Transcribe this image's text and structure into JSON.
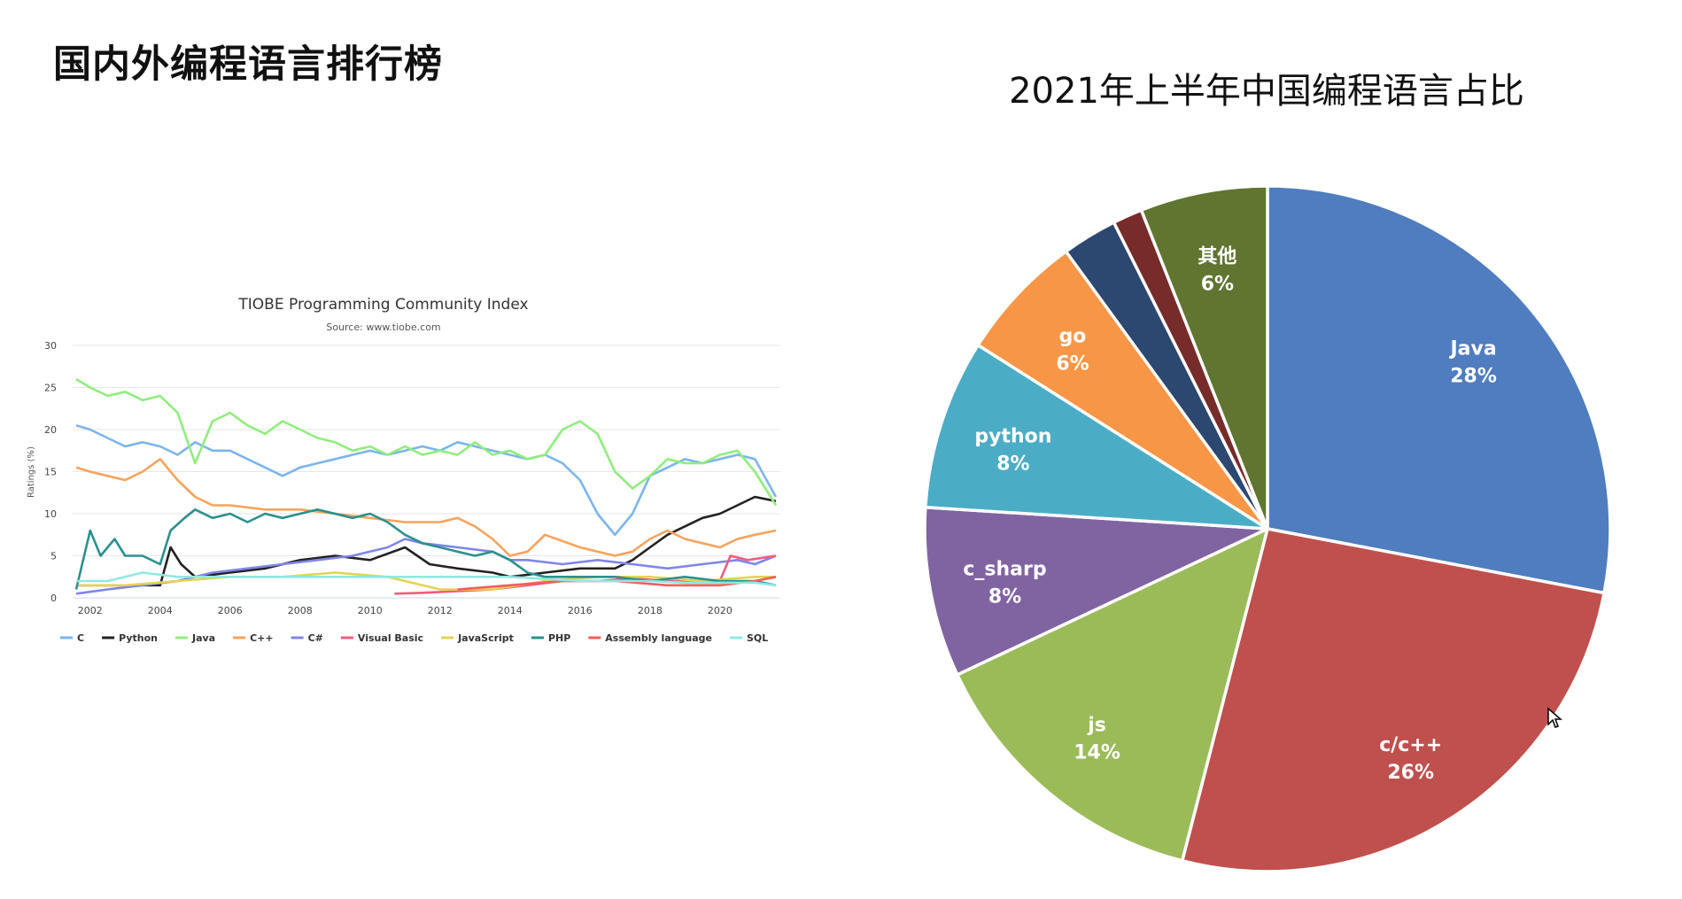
{
  "slide": {
    "title": "国内外编程语言排行榜"
  },
  "chart_data": [
    {
      "type": "line",
      "title": "TIOBE Programming Community Index",
      "subtitle": "Source: www.tiobe.com",
      "xlabel": "",
      "ylabel": "Ratings (%)",
      "xlim": [
        2001.5,
        2021.7
      ],
      "ylim": [
        0,
        30
      ],
      "yticks": [
        0,
        5,
        10,
        15,
        20,
        25,
        30
      ],
      "xticks": [
        2002,
        2004,
        2006,
        2008,
        2010,
        2012,
        2014,
        2016,
        2018,
        2020
      ],
      "grid": true,
      "legend_position": "bottom",
      "series": [
        {
          "name": "C",
          "color": "#7cb5ec",
          "x": [
            2001.6,
            2002.0,
            2002.5,
            2003.0,
            2003.5,
            2004.0,
            2004.5,
            2005.0,
            2005.5,
            2006.0,
            2006.5,
            2007.0,
            2007.5,
            2008.0,
            2008.5,
            2009.0,
            2009.5,
            2010.0,
            2010.5,
            2011.0,
            2011.5,
            2012.0,
            2012.5,
            2013.0,
            2013.5,
            2014.0,
            2014.5,
            2015.0,
            2015.5,
            2016.0,
            2016.5,
            2017.0,
            2017.5,
            2018.0,
            2018.5,
            2019.0,
            2019.5,
            2020.0,
            2020.5,
            2021.0,
            2021.6
          ],
          "y": [
            20.5,
            20.0,
            19.0,
            18.0,
            18.5,
            18.0,
            17.0,
            18.5,
            17.5,
            17.5,
            16.5,
            15.5,
            14.5,
            15.5,
            16.0,
            16.5,
            17.0,
            17.5,
            17.0,
            17.5,
            18.0,
            17.5,
            18.5,
            18.0,
            17.5,
            17.0,
            16.5,
            17.0,
            16.0,
            14.0,
            10.0,
            7.5,
            10.0,
            14.5,
            15.5,
            16.5,
            16.0,
            16.5,
            17.0,
            16.5,
            12.0
          ]
        },
        {
          "name": "Python",
          "color": "#222222",
          "x": [
            2001.6,
            2002.5,
            2003.5,
            2004.0,
            2004.3,
            2004.6,
            2005.0,
            2006.0,
            2007.0,
            2008.0,
            2009.0,
            2010.0,
            2011.0,
            2011.7,
            2012.5,
            2013.5,
            2014.0,
            2015.0,
            2016.0,
            2017.0,
            2017.5,
            2018.0,
            2018.5,
            2019.0,
            2019.5,
            2020.0,
            2020.5,
            2021.0,
            2021.6
          ],
          "y": [
            1.5,
            1.5,
            1.5,
            1.5,
            6.0,
            4.0,
            2.5,
            3.0,
            3.5,
            4.5,
            5.0,
            4.5,
            6.0,
            4.0,
            3.5,
            3.0,
            2.5,
            3.0,
            3.5,
            3.5,
            4.5,
            6.0,
            7.5,
            8.5,
            9.5,
            10.0,
            11.0,
            12.0,
            11.5
          ]
        },
        {
          "name": "Java",
          "color": "#90ed7d",
          "x": [
            2001.6,
            2002.0,
            2002.5,
            2003.0,
            2003.5,
            2004.0,
            2004.5,
            2005.0,
            2005.5,
            2006.0,
            2006.5,
            2007.0,
            2007.5,
            2008.0,
            2008.5,
            2009.0,
            2009.5,
            2010.0,
            2010.5,
            2011.0,
            2011.5,
            2012.0,
            2012.5,
            2013.0,
            2013.5,
            2014.0,
            2014.5,
            2015.0,
            2015.5,
            2016.0,
            2016.5,
            2017.0,
            2017.5,
            2018.0,
            2018.5,
            2019.0,
            2019.5,
            2020.0,
            2020.5,
            2021.0,
            2021.6
          ],
          "y": [
            26.0,
            25.0,
            24.0,
            24.5,
            23.5,
            24.0,
            22.0,
            16.0,
            21.0,
            22.0,
            20.5,
            19.5,
            21.0,
            20.0,
            19.0,
            18.5,
            17.5,
            18.0,
            17.0,
            18.0,
            17.0,
            17.5,
            17.0,
            18.5,
            17.0,
            17.5,
            16.5,
            17.0,
            20.0,
            21.0,
            19.5,
            15.0,
            13.0,
            14.5,
            16.5,
            16.0,
            16.0,
            17.0,
            17.5,
            15.0,
            11.0
          ]
        },
        {
          "name": "C++",
          "color": "#f7a35c",
          "x": [
            2001.6,
            2002.0,
            2002.5,
            2003.0,
            2003.5,
            2004.0,
            2004.5,
            2005.0,
            2005.5,
            2006.0,
            2007.0,
            2008.0,
            2009.0,
            2010.0,
            2011.0,
            2012.0,
            2012.5,
            2013.0,
            2013.5,
            2014.0,
            2014.5,
            2015.0,
            2016.0,
            2017.0,
            2017.5,
            2018.0,
            2018.5,
            2019.0,
            2019.5,
            2020.0,
            2020.5,
            2021.0,
            2021.6
          ],
          "y": [
            15.5,
            15.0,
            14.5,
            14.0,
            15.0,
            16.5,
            14.0,
            12.0,
            11.0,
            11.0,
            10.5,
            10.5,
            10.0,
            9.5,
            9.0,
            9.0,
            9.5,
            8.5,
            7.0,
            5.0,
            5.5,
            7.5,
            6.0,
            5.0,
            5.5,
            7.0,
            8.0,
            7.0,
            6.5,
            6.0,
            7.0,
            7.5,
            8.0
          ]
        },
        {
          "name": "C#",
          "color": "#8085e9",
          "x": [
            2001.6,
            2002.5,
            2003.5,
            2004.5,
            2005.5,
            2006.5,
            2007.5,
            2008.5,
            2009.5,
            2010.5,
            2011.0,
            2011.5,
            2012.5,
            2013.5,
            2014.0,
            2014.5,
            2015.5,
            2016.5,
            2017.5,
            2018.5,
            2019.5,
            2020.5,
            2021.0,
            2021.6
          ],
          "y": [
            0.5,
            1.0,
            1.5,
            2.0,
            3.0,
            3.5,
            4.0,
            4.5,
            5.0,
            6.0,
            7.0,
            6.5,
            6.0,
            5.5,
            4.5,
            4.5,
            4.0,
            4.5,
            4.0,
            3.5,
            4.0,
            4.5,
            4.0,
            5.0
          ]
        },
        {
          "name": "Visual Basic",
          "color": "#f15c80",
          "x": [
            2010.7,
            2011.5,
            2012.5,
            2013.5,
            2014.5,
            2015.5,
            2016.5,
            2017.5,
            2018.5,
            2019.5,
            2020.0,
            2020.3,
            2020.8,
            2021.6
          ],
          "y": [
            0.5,
            0.6,
            0.8,
            1.0,
            1.5,
            2.0,
            2.0,
            2.3,
            2.0,
            2.0,
            2.0,
            5.0,
            4.5,
            5.0
          ]
        },
        {
          "name": "JavaScript",
          "color": "#e4d354",
          "x": [
            2001.6,
            2003.0,
            2004.5,
            2006.0,
            2007.5,
            2009.0,
            2010.5,
            2012.0,
            2013.5,
            2015.0,
            2016.5,
            2018.0,
            2019.5,
            2021.0,
            2021.6
          ],
          "y": [
            1.5,
            1.5,
            2.0,
            2.5,
            2.5,
            3.0,
            2.5,
            1.0,
            1.0,
            2.0,
            2.5,
            2.5,
            2.0,
            2.5,
            2.5
          ]
        },
        {
          "name": "PHP",
          "color": "#2b908f",
          "x": [
            2001.6,
            2002.0,
            2002.3,
            2002.7,
            2003.0,
            2003.5,
            2004.0,
            2004.3,
            2004.7,
            2005.0,
            2005.5,
            2006.0,
            2006.5,
            2007.0,
            2007.5,
            2008.0,
            2008.5,
            2009.0,
            2009.5,
            2010.0,
            2010.5,
            2011.0,
            2011.5,
            2012.0,
            2012.5,
            2013.0,
            2013.5,
            2014.0,
            2014.5,
            2015.0,
            2016.0,
            2017.0,
            2018.0,
            2019.0,
            2020.0,
            2021.0,
            2021.6
          ],
          "y": [
            1.0,
            8.0,
            5.0,
            7.0,
            5.0,
            5.0,
            4.0,
            8.0,
            9.5,
            10.5,
            9.5,
            10.0,
            9.0,
            10.0,
            9.5,
            10.0,
            10.5,
            10.0,
            9.5,
            10.0,
            9.0,
            7.5,
            6.5,
            6.0,
            5.5,
            5.0,
            5.5,
            4.5,
            3.0,
            2.5,
            2.5,
            2.5,
            2.0,
            2.5,
            2.0,
            2.0,
            1.5
          ]
        },
        {
          "name": "Assembly language",
          "color": "#f45b5b",
          "x": [
            2012.5,
            2014.0,
            2015.5,
            2017.0,
            2018.5,
            2020.0,
            2021.0,
            2021.6
          ],
          "y": [
            1.0,
            1.5,
            2.0,
            2.0,
            1.5,
            1.5,
            2.0,
            2.5
          ]
        },
        {
          "name": "SQL",
          "color": "#91e8e1",
          "x": [
            2001.6,
            2002.5,
            2003.5,
            2004.5,
            2006.0,
            2008.0,
            2010.0,
            2012.0,
            2014.0,
            2016.0,
            2018.0,
            2019.0,
            2020.0,
            2021.0,
            2021.6
          ],
          "y": [
            2.0,
            2.0,
            3.0,
            2.5,
            2.5,
            2.5,
            2.5,
            2.5,
            2.5,
            2.0,
            2.0,
            1.8,
            1.8,
            1.8,
            1.5
          ]
        }
      ]
    },
    {
      "type": "pie",
      "title": "2021年上半年中国编程语言占比",
      "start_angle_deg": 0,
      "slices": [
        {
          "label": "Java",
          "value_label": "28%",
          "value": 28,
          "color": "#4f7dbf"
        },
        {
          "label": "c/c++",
          "value_label": "26%",
          "value": 26,
          "color": "#c0504d"
        },
        {
          "label": "js",
          "value_label": "14%",
          "value": 14,
          "color": "#9bbb59"
        },
        {
          "label": "c_sharp",
          "value_label": "8%",
          "value": 8,
          "color": "#8064a2"
        },
        {
          "label": "python",
          "value_label": "8%",
          "value": 8,
          "color": "#4bacc6"
        },
        {
          "label": "go",
          "value_label": "6%",
          "value": 6,
          "color": "#f79646"
        },
        {
          "label": "",
          "value_label": "",
          "value": 2.6,
          "color": "#2c4770"
        },
        {
          "label": "",
          "value_label": "",
          "value": 1.4,
          "color": "#772c2a"
        },
        {
          "label": "其他",
          "value_label": "6%",
          "value": 6,
          "color": "#5f7530"
        }
      ]
    }
  ]
}
